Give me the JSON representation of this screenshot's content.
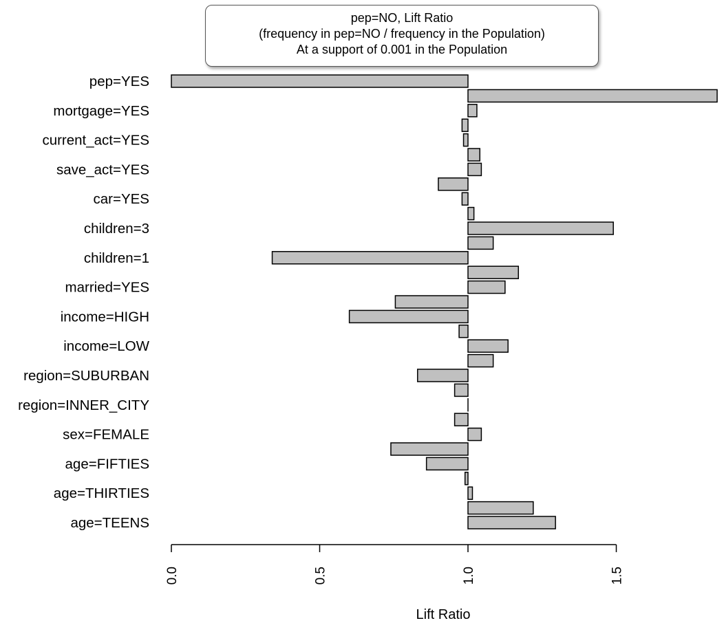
{
  "chart_data": {
    "type": "bar",
    "orientation": "horizontal",
    "title": "pep=NO, Lift Ratio",
    "subtitle": "(frequency in pep=NO / frequency in the Population)",
    "subtitle2": "At a support of 0.001 in the Population",
    "xlabel": "Lift Ratio",
    "ylabel": "",
    "baseline": 1.0,
    "xlim": [
      0.0,
      1.84
    ],
    "xticks": [
      "0.0",
      "0.5",
      "1.0",
      "1.5"
    ],
    "xtick_values": [
      0.0,
      0.5,
      1.0,
      1.5
    ],
    "category_labels": [
      "pep=YES",
      "mortgage=YES",
      "current_act=YES",
      "save_act=YES",
      "car=YES",
      "children=3",
      "children=1",
      "married=YES",
      "income=HIGH",
      "income=LOW",
      "region=SUBURBAN",
      "region=INNER_CITY",
      "sex=FEMALE",
      "age=FIFTIES",
      "age=THIRTIES",
      "age=TEENS"
    ],
    "values": [
      0.0,
      1.84,
      1.03,
      0.98,
      0.985,
      1.04,
      1.045,
      0.9,
      0.98,
      1.02,
      1.49,
      1.085,
      0.34,
      1.17,
      1.125,
      0.755,
      0.6,
      0.97,
      1.135,
      1.085,
      0.83,
      0.955,
      1.0,
      0.955,
      1.045,
      0.74,
      0.86,
      0.99,
      1.015,
      1.22,
      1.295
    ],
    "grid": false,
    "legend": "none"
  }
}
